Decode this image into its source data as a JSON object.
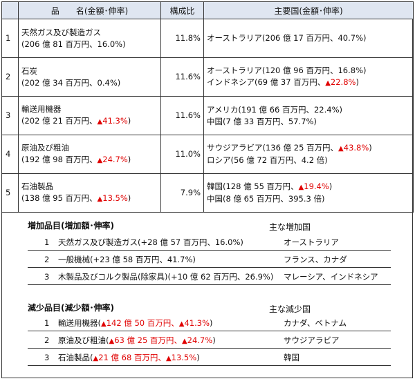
{
  "main_table": {
    "headers": {
      "item": "品　　名(金額･伸率)",
      "ratio": "構成比",
      "countries": "主要国(金額･伸率)"
    },
    "rows": [
      {
        "no": "1",
        "item_name": "天然ガス及び製造ガス",
        "item_value_pre": "(206 億 81 百万円、16.0%)",
        "item_value_neg": "",
        "item_value_post": "",
        "ratio": "11.8%",
        "countries": [
          {
            "pre": "オーストラリア(206 億 17 百万円、40.7%)",
            "neg": "",
            "post": ""
          }
        ]
      },
      {
        "no": "2",
        "item_name": "石炭",
        "item_value_pre": "(202 億 34 百万円、0.4%)",
        "item_value_neg": "",
        "item_value_post": "",
        "ratio": "11.6%",
        "countries": [
          {
            "pre": "オーストラリア(120 億 96 百万円、16.8%)",
            "neg": "",
            "post": ""
          },
          {
            "pre": "インドネシア(69 億 37 百万円、",
            "neg": "22.8%",
            "post": ")"
          }
        ]
      },
      {
        "no": "3",
        "item_name": "輸送用機器",
        "item_value_pre": "(202 億 21 百万円、",
        "item_value_neg": "41.3%",
        "item_value_post": ")",
        "ratio": "11.6%",
        "countries": [
          {
            "pre": "アメリカ(191 億 66 百万円、22.4%)",
            "neg": "",
            "post": ""
          },
          {
            "pre": "中国(7 億 33 百万円、57.7%)",
            "neg": "",
            "post": ""
          }
        ]
      },
      {
        "no": "4",
        "item_name": "原油及び粗油",
        "item_value_pre": "(192 億 98 百万円、",
        "item_value_neg": "24.7%",
        "item_value_post": ")",
        "ratio": "11.0%",
        "countries": [
          {
            "pre": "サウジアラビア(136 億 25 百万円、",
            "neg": "43.8%",
            "post": ")"
          },
          {
            "pre": "ロシア(56 億 72 百万円、4.2 倍)",
            "neg": "",
            "post": ""
          }
        ]
      },
      {
        "no": "5",
        "item_name": "石油製品",
        "item_value_pre": "(138 億 95 百万円、",
        "item_value_neg": "13.5%",
        "item_value_post": ")",
        "ratio": "7.9%",
        "countries": [
          {
            "pre": "韓国(128 億 55 百万円、",
            "neg": "19.4%",
            "post": ")"
          },
          {
            "pre": "中国(8 億 65 百万円、395.3 倍)",
            "neg": "",
            "post": ""
          }
        ]
      }
    ]
  },
  "negative_marker": "▲",
  "increase": {
    "title": "増加品目(増加額･伸率)",
    "country_header": "主な増加国",
    "rows": [
      {
        "no": "1",
        "pre": "天然ガス及び製造ガス(+28 億 57 百万円、16.0%)",
        "neg1": "",
        "mid": "",
        "neg2": "",
        "post": "",
        "country": "オーストラリア"
      },
      {
        "no": "2",
        "pre": "一般機械(+23 億 58 百万円、41.7%)",
        "neg1": "",
        "mid": "",
        "neg2": "",
        "post": "",
        "country": "フランス、カナダ"
      },
      {
        "no": "3",
        "pre": "木製品及びコルク製品(除家具)(+10 億 62 百万円、26.9%)",
        "neg1": "",
        "mid": "",
        "neg2": "",
        "post": "",
        "country": "マレーシア、インドネシア"
      }
    ]
  },
  "decrease": {
    "title": "減少品目(減少額･伸率)",
    "country_header": "主な減少国",
    "rows": [
      {
        "no": "1",
        "pre": "輸送用機器(",
        "neg1": "142 億 50 百万円、",
        "mid": "",
        "neg2": "41.3%",
        "post": ")",
        "country": "カナダ、ベトナム"
      },
      {
        "no": "2",
        "pre": "原油及び粗油(",
        "neg1": "63 億 25 百万円、",
        "mid": "",
        "neg2": "24.7%",
        "post": ")",
        "country": "サウジアラビア"
      },
      {
        "no": "3",
        "pre": "石油製品(",
        "neg1": "21 億 68 百万円、",
        "mid": "",
        "neg2": "13.5%",
        "post": ")",
        "country": "韓国"
      }
    ]
  }
}
